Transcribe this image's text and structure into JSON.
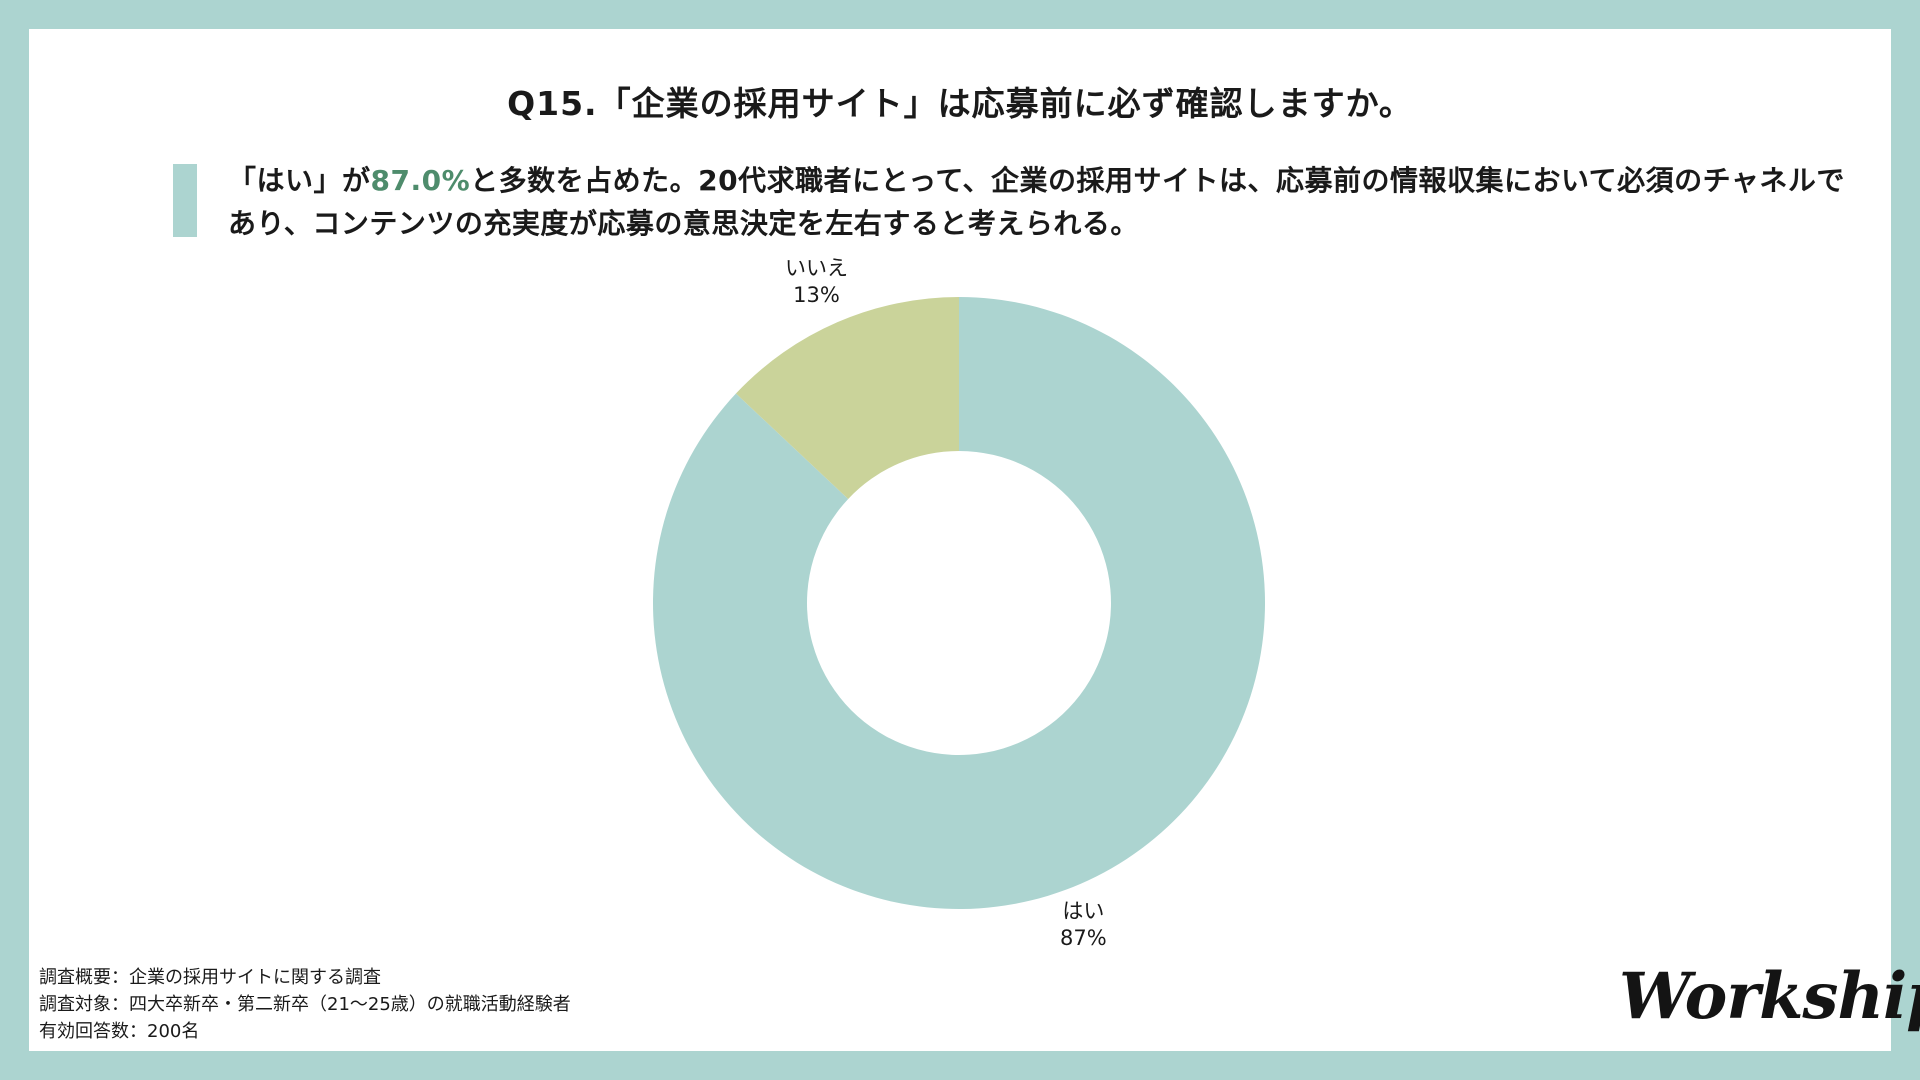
{
  "title": "Q15.「企業の採用サイト」は応募前に必ず確認しますか。",
  "lead": {
    "before": "「はい」が",
    "highlight": "87.0%",
    "after": "と多数を占めた。20代求職者にとって、企業の採用サイトは、応募前の情報収集において必須のチャネルであり、コンテンツの充実度が応募の意思決定を左右すると考えられる。"
  },
  "colors": {
    "background": "#acd4d0",
    "highlight_text": "#4e8c6c",
    "yes": "#acd4d0",
    "no": "#cad39a"
  },
  "chart_data": {
    "type": "pie",
    "style": "donut",
    "slices": [
      {
        "label": "はい",
        "value": 87,
        "percent_label": "87%",
        "color": "#acd4d0"
      },
      {
        "label": "いいえ",
        "value": 13,
        "percent_label": "13%",
        "color": "#cad39a"
      }
    ]
  },
  "notes": [
    "調査概要：企業の採用サイトに関する調査",
    "調査対象：四大卒新卒・第二新卒（21〜25歳）の就職活動経験者",
    "有効回答数：200名"
  ],
  "logo": "Workship"
}
